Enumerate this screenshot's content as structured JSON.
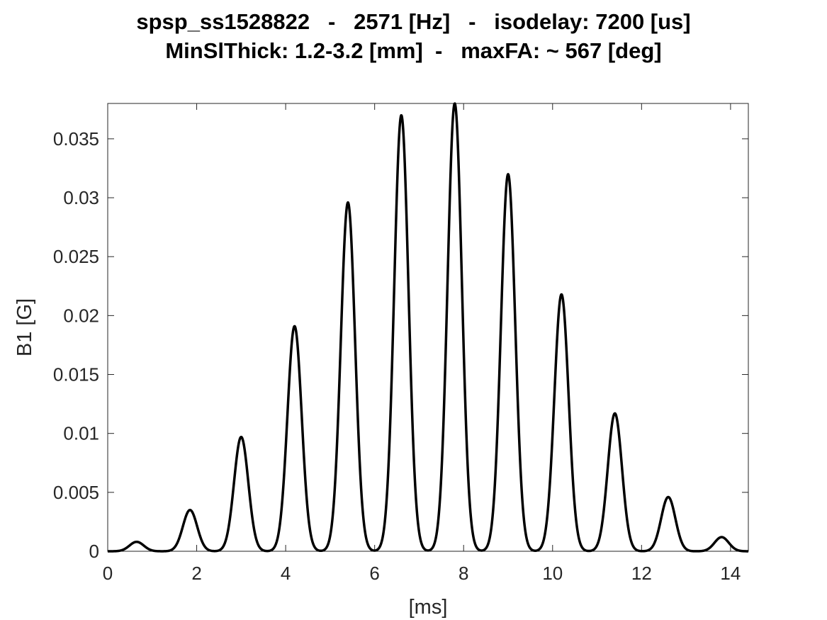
{
  "chart_data": {
    "type": "line",
    "title": [
      "spsp_ss1528822   -   2571 [Hz]   -   isodelay: 7200 [us]",
      "MinSlThick: 1.2-3.2 [mm]  -   maxFA: ~ 567 [deg]"
    ],
    "xlabel": "[ms]",
    "ylabel": "B1 [G]",
    "xlim": [
      0,
      14.4
    ],
    "ylim": [
      0,
      0.038
    ],
    "xticks": [
      "0",
      "2",
      "4",
      "6",
      "8",
      "10",
      "12",
      "14"
    ],
    "yticks": [
      "0",
      "0.005",
      "0.01",
      "0.015",
      "0.02",
      "0.025",
      "0.03",
      "0.035"
    ],
    "grid": false,
    "line_color": "#000000",
    "series": [
      {
        "pulse_centers_ms": [
          0.65,
          1.85,
          3.0,
          4.2,
          5.4,
          6.6,
          7.8,
          9.0,
          10.2,
          11.4,
          12.6,
          13.8
        ],
        "pulse_peaks_G": [
          0.0008,
          0.0035,
          0.0097,
          0.0191,
          0.0296,
          0.037,
          0.038,
          0.032,
          0.0218,
          0.0117,
          0.0046,
          0.0012
        ],
        "pulse_width_ms": 0.16
      }
    ]
  }
}
